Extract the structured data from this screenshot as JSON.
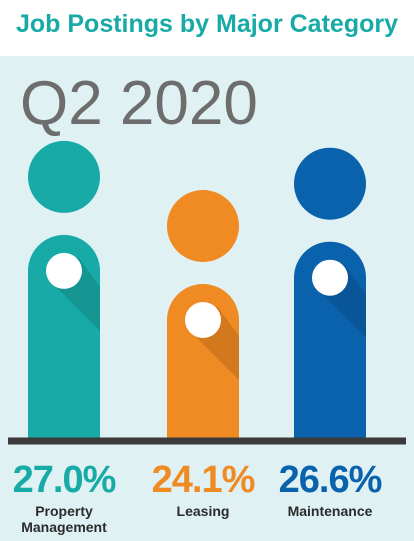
{
  "chart_data": {
    "type": "bar",
    "title": "Job Postings by Major Category",
    "subtitle": "Q2 2020",
    "categories": [
      "Property Management",
      "Leasing",
      "Maintenance"
    ],
    "values": [
      27.0,
      24.1,
      26.6
    ],
    "value_labels": [
      "27.0%",
      "24.1%",
      "26.6%"
    ],
    "colors": [
      "#17aaa6",
      "#f08a23",
      "#0a62ad"
    ],
    "ylim": [
      15,
      28
    ]
  }
}
